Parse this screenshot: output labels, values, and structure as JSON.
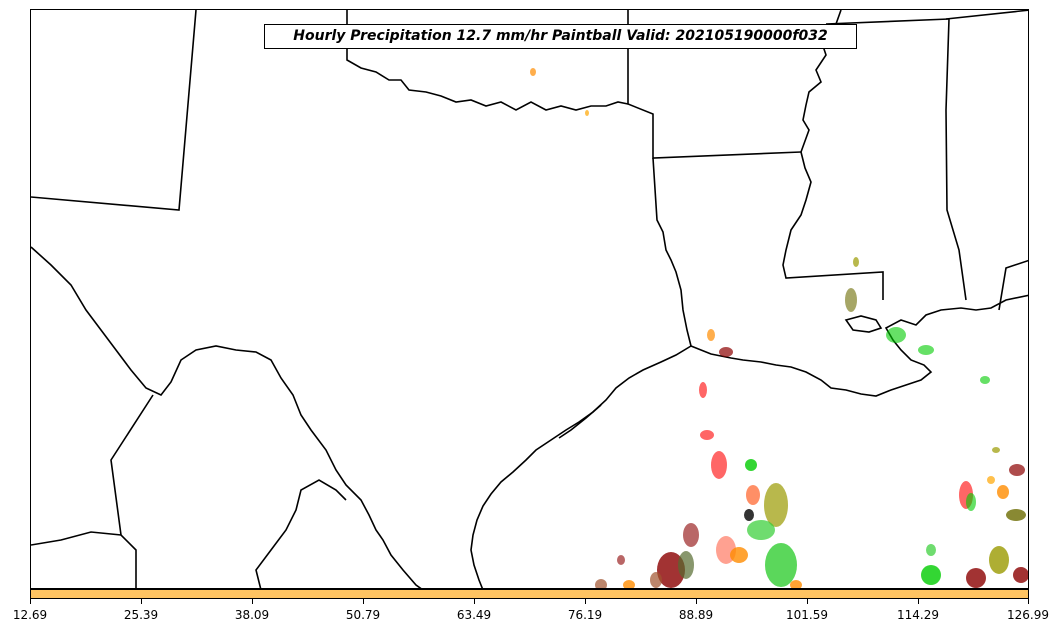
{
  "title": "Hourly Precipitation 12.7 mm/hr Paintball Valid: 202105190000f032",
  "colorbar": {
    "color": "#ffc462",
    "ticks": [
      "12.69",
      "25.39",
      "38.09",
      "50.79",
      "63.49",
      "76.19",
      "88.89",
      "101.59",
      "114.29",
      "126.99"
    ]
  },
  "map": {
    "region": "Texas / Louisiana / Gulf of Mexico",
    "boundary_color": "#000000",
    "paintball_colors": [
      "#ff0000",
      "#8b0000",
      "#00cc00",
      "#ff8c00",
      "#9a9a00",
      "#556b2f",
      "#a0522d",
      "#ff6347",
      "#32cd32"
    ]
  }
}
